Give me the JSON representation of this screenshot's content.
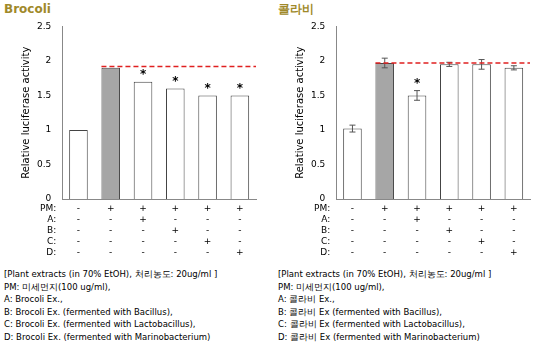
{
  "chart_data": [
    {
      "type": "bar",
      "title": "Brocoli",
      "y_label": "Relative luciferase activity",
      "categories": [
        null,
        null,
        null,
        null,
        null,
        null
      ],
      "values": [
        1.0,
        1.9,
        1.7,
        1.6,
        1.5,
        1.5
      ],
      "colors": [
        "#ffffff",
        "#a6a6a6",
        "#ffffff",
        "#ffffff",
        "#ffffff",
        "#ffffff"
      ],
      "ylim": [
        0,
        2.5
      ],
      "yticks": [
        0,
        0.5,
        1,
        1.5,
        2,
        2.5
      ],
      "grid": false,
      "tick_labels": "y",
      "annotations": [
        null,
        null,
        "*",
        "*",
        "*",
        "*"
      ],
      "reference_line": {
        "value": 1.92,
        "color": "#e02020",
        "line_style": "dashed"
      },
      "conditions": [
        {
          "name": "PM:",
          "marks": [
            "-",
            "+",
            "+",
            "+",
            "+",
            "+"
          ]
        },
        {
          "name": "A:",
          "marks": [
            "-",
            "-",
            "+",
            "-",
            "-",
            "-"
          ]
        },
        {
          "name": "B:",
          "marks": [
            "-",
            "-",
            "-",
            "+",
            "-",
            "-"
          ]
        },
        {
          "name": "C:",
          "marks": [
            "-",
            "-",
            "-",
            "-",
            "+",
            "-"
          ]
        },
        {
          "name": "D:",
          "marks": [
            "-",
            "-",
            "-",
            "-",
            "-",
            "+"
          ]
        }
      ],
      "notes": [
        "[Plant extracts (in 70% EtOH), 처리농도: 20ug/ml ]",
        "PM: 미세먼지(100 ug/ml),",
        "A: Brocoli Ex.,",
        "B: Brocoli Ex. (fermented with Bacillus),",
        "C: Brocoli Ex. (fermented with Lactobacillus),",
        "D: Brocoli Ex. (fermented with Marinobacterium)"
      ]
    },
    {
      "type": "bar",
      "title": "콜라비",
      "y_label": "Relative luciferase activity",
      "categories": [
        null,
        null,
        null,
        null,
        null,
        null
      ],
      "values": [
        1.02,
        1.97,
        1.5,
        1.95,
        1.95,
        1.9
      ],
      "errors": [
        0.05,
        0.07,
        0.07,
        0.03,
        0.07,
        0.03
      ],
      "colors": [
        "#ffffff",
        "#a6a6a6",
        "#ffffff",
        "#ffffff",
        "#ffffff",
        "#ffffff"
      ],
      "ylim": [
        0,
        2.5
      ],
      "yticks": [
        0,
        0.5,
        1,
        1.5,
        2,
        2.5
      ],
      "grid": false,
      "tick_labels": "y",
      "annotations": [
        null,
        null,
        "*",
        null,
        null,
        null
      ],
      "reference_line": {
        "value": 1.97,
        "color": "#e02020",
        "line_style": "dashed"
      },
      "conditions": [
        {
          "name": "PM:",
          "marks": [
            "-",
            "+",
            "+",
            "+",
            "+",
            "+"
          ]
        },
        {
          "name": "A:",
          "marks": [
            "-",
            "-",
            "+",
            "-",
            "-",
            "-"
          ]
        },
        {
          "name": "B:",
          "marks": [
            "-",
            "-",
            "-",
            "+",
            "-",
            "-"
          ]
        },
        {
          "name": "C:",
          "marks": [
            "-",
            "-",
            "-",
            "-",
            "+",
            "-"
          ]
        },
        {
          "name": "D:",
          "marks": [
            "-",
            "-",
            "-",
            "-",
            "-",
            "+"
          ]
        }
      ],
      "notes": [
        "[Plant extracts (in 70% EtOH), 처리농도: 20ug/ml ]",
        "PM: 미세먼지(100 ug/ml),",
        "A: 콜라비 Ex.,",
        "B: 콜라비 Ex (fermented with Bacillus),",
        "C: 콜라비 Ex (fermented with Lactobacillus),",
        "D: 콜라비 Ex (fermented with Marinobacterium)"
      ]
    }
  ]
}
